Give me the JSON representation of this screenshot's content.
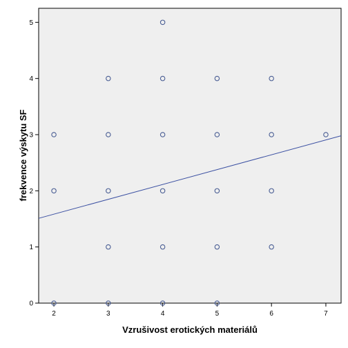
{
  "chart_data": {
    "type": "scatter",
    "xlabel": "Vzrušivost erotických materiálů",
    "ylabel": "frekvence výskytu SF",
    "xlim": [
      1.72,
      7.28
    ],
    "ylim": [
      0,
      5.25
    ],
    "x_ticks": [
      "2",
      "3",
      "4",
      "5",
      "6",
      "7"
    ],
    "y_ticks": [
      "0",
      "1",
      "2",
      "3",
      "4",
      "5"
    ],
    "grid": false,
    "legend": "none",
    "points": [
      {
        "x": 2,
        "y": 0
      },
      {
        "x": 2,
        "y": 2
      },
      {
        "x": 2,
        "y": 3
      },
      {
        "x": 3,
        "y": 0
      },
      {
        "x": 3,
        "y": 1
      },
      {
        "x": 3,
        "y": 2
      },
      {
        "x": 3,
        "y": 3
      },
      {
        "x": 3,
        "y": 4
      },
      {
        "x": 4,
        "y": 0
      },
      {
        "x": 4,
        "y": 1
      },
      {
        "x": 4,
        "y": 2
      },
      {
        "x": 4,
        "y": 3
      },
      {
        "x": 4,
        "y": 4
      },
      {
        "x": 4,
        "y": 5
      },
      {
        "x": 5,
        "y": 0
      },
      {
        "x": 5,
        "y": 1
      },
      {
        "x": 5,
        "y": 2
      },
      {
        "x": 5,
        "y": 3
      },
      {
        "x": 5,
        "y": 4
      },
      {
        "x": 6,
        "y": 1
      },
      {
        "x": 6,
        "y": 2
      },
      {
        "x": 6,
        "y": 3
      },
      {
        "x": 6,
        "y": 4
      },
      {
        "x": 7,
        "y": 3
      }
    ],
    "fit_line": {
      "type": "linear",
      "x": [
        1.72,
        7.28
      ],
      "y": [
        1.51,
        2.98
      ]
    },
    "colors": {
      "plot_background": "#efefef",
      "marker_stroke": "#4a5e94",
      "fit_line": "#3b50a2",
      "axis": "#000000"
    }
  }
}
